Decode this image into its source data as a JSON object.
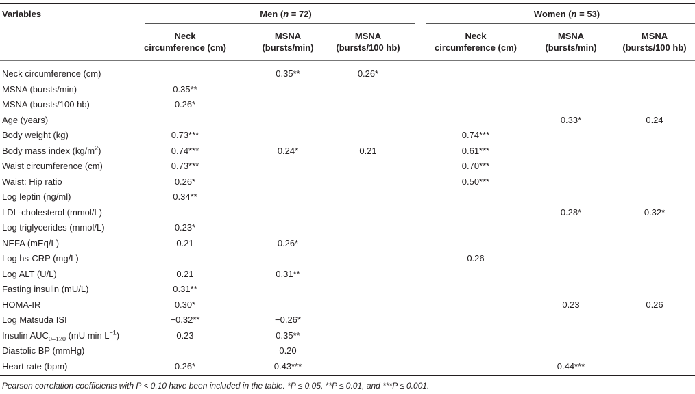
{
  "table": {
    "variables_header": "Variables",
    "groups": [
      {
        "label": "Men (",
        "n_label": "n",
        "n_value": " = 72)"
      },
      {
        "label": "Women (",
        "n_label": "n",
        "n_value": " = 53)"
      }
    ],
    "columns": [
      {
        "line1": "Neck",
        "line2": "circumference (cm)"
      },
      {
        "line1": "MSNA",
        "line2": "(bursts/min)"
      },
      {
        "line1": "MSNA",
        "line2": "(bursts/100 hb)"
      },
      {
        "line1": "Neck",
        "line2": "circumference (cm)"
      },
      {
        "line1": "MSNA",
        "line2": "(bursts/min)"
      },
      {
        "line1": "MSNA",
        "line2": "(bursts/100 hb)"
      }
    ],
    "rows": [
      {
        "label": "Neck circumference (cm)",
        "values": [
          "",
          "0.35**",
          "0.26*",
          "",
          "",
          ""
        ]
      },
      {
        "label": "MSNA (bursts/min)",
        "values": [
          "0.35**",
          "",
          "",
          "",
          "",
          ""
        ]
      },
      {
        "label": "MSNA (bursts/100 hb)",
        "values": [
          "0.26*",
          "",
          "",
          "",
          "",
          ""
        ]
      },
      {
        "label": "Age (years)",
        "values": [
          "",
          "",
          "",
          "",
          "0.33*",
          "0.24"
        ]
      },
      {
        "label": "Body weight (kg)",
        "values": [
          "0.73***",
          "",
          "",
          "0.74***",
          "",
          ""
        ]
      },
      {
        "label": "Body mass index (kg/m",
        "label_sup": "2",
        "label_after": ")",
        "values": [
          "0.74***",
          "0.24*",
          "0.21",
          "0.61***",
          "",
          ""
        ]
      },
      {
        "label": "Waist circumference (cm)",
        "values": [
          "0.73***",
          "",
          "",
          "0.70***",
          "",
          ""
        ]
      },
      {
        "label": "Waist: Hip ratio",
        "values": [
          "0.26*",
          "",
          "",
          "0.50***",
          "",
          ""
        ]
      },
      {
        "label": "Log leptin (ng/ml)",
        "values": [
          "0.34**",
          "",
          "",
          "",
          "",
          ""
        ]
      },
      {
        "label": "LDL-cholesterol (mmol/L)",
        "values": [
          "",
          "",
          "",
          "",
          "0.28*",
          "0.32*"
        ]
      },
      {
        "label": "Log triglycerides (mmol/L)",
        "values": [
          "0.23*",
          "",
          "",
          "",
          "",
          ""
        ]
      },
      {
        "label": "NEFA (mEq/L)",
        "values": [
          "0.21",
          "0.26*",
          "",
          "",
          "",
          ""
        ]
      },
      {
        "label": "Log hs-CRP (mg/L)",
        "values": [
          "",
          "",
          "",
          "0.26",
          "",
          ""
        ]
      },
      {
        "label": "Log ALT (U/L)",
        "values": [
          "0.21",
          "0.31**",
          "",
          "",
          "",
          ""
        ]
      },
      {
        "label": "Fasting insulin (mU/L)",
        "values": [
          "0.31**",
          "",
          "",
          "",
          "",
          ""
        ]
      },
      {
        "label": "HOMA-IR",
        "values": [
          "0.30*",
          "",
          "",
          "",
          "0.23",
          "0.26"
        ]
      },
      {
        "label": "Log Matsuda ISI",
        "values": [
          "−0.32**",
          "−0.26*",
          "",
          "",
          "",
          ""
        ]
      },
      {
        "label": "Insulin AUC",
        "label_sub": "0–120",
        "label_after": " (mU min L",
        "label_sup": "−1",
        "label_end": ")",
        "values": [
          "0.23",
          "0.35**",
          "",
          "",
          "",
          ""
        ]
      },
      {
        "label": "Diastolic BP (mmHg)",
        "values": [
          "",
          "0.20",
          "",
          "",
          "",
          ""
        ]
      },
      {
        "label": "Heart rate (bpm)",
        "values": [
          "0.26*",
          "0.43***",
          "",
          "",
          "0.44***",
          ""
        ]
      }
    ],
    "footnote": "Pearson correlation coefficients with P < 0.10 have been included in the table. *P ≤ 0.05, **P ≤ 0.01, and ***P ≤ 0.001."
  }
}
